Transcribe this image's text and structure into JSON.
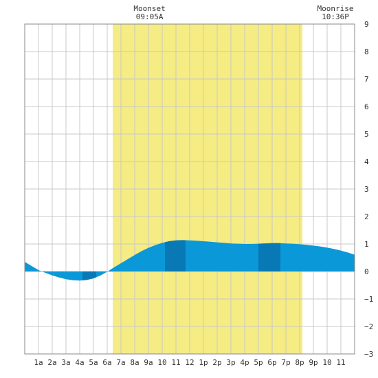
{
  "chart_data": {
    "type": "area",
    "title": "",
    "xlabel": "",
    "ylabel": "",
    "x_unit": "hour of day",
    "xlim": [
      0,
      24
    ],
    "ylim": [
      -3,
      9
    ],
    "y_ticks": [
      -3,
      -2,
      -1,
      0,
      1,
      2,
      3,
      4,
      5,
      6,
      7,
      8,
      9
    ],
    "x_ticks": [
      {
        "hour": 1,
        "label": "1a"
      },
      {
        "hour": 2,
        "label": "2a"
      },
      {
        "hour": 3,
        "label": "3a"
      },
      {
        "hour": 4,
        "label": "4a"
      },
      {
        "hour": 5,
        "label": "5a"
      },
      {
        "hour": 6,
        "label": "6a"
      },
      {
        "hour": 7,
        "label": "7a"
      },
      {
        "hour": 8,
        "label": "8a"
      },
      {
        "hour": 9,
        "label": "9a"
      },
      {
        "hour": 10,
        "label": "10"
      },
      {
        "hour": 11,
        "label": "11"
      },
      {
        "hour": 12,
        "label": "12"
      },
      {
        "hour": 13,
        "label": "1p"
      },
      {
        "hour": 14,
        "label": "2p"
      },
      {
        "hour": 15,
        "label": "3p"
      },
      {
        "hour": 16,
        "label": "4p"
      },
      {
        "hour": 17,
        "label": "5p"
      },
      {
        "hour": 18,
        "label": "6p"
      },
      {
        "hour": 19,
        "label": "7p"
      },
      {
        "hour": 20,
        "label": "8p"
      },
      {
        "hour": 21,
        "label": "9p"
      },
      {
        "hour": 22,
        "label": "10"
      },
      {
        "hour": 23,
        "label": "11"
      }
    ],
    "daylight": {
      "start_hour": 6.4,
      "end_hour": 20.2
    },
    "highlight_bands": [
      {
        "start_hour": 4.2,
        "end_hour": 5.2
      },
      {
        "start_hour": 10.2,
        "end_hour": 11.7
      },
      {
        "start_hour": 17.0,
        "end_hour": 18.6
      }
    ],
    "series": [
      {
        "x": [
          0,
          0.5,
          1,
          1.5,
          2,
          2.5,
          3,
          3.5,
          4,
          4.5,
          5,
          5.5,
          6,
          6.5,
          7,
          7.5,
          8,
          8.5,
          9,
          9.5,
          10,
          10.5,
          11,
          11.5,
          12,
          12.5,
          13,
          13.5,
          14,
          14.5,
          15,
          15.5,
          16,
          16.5,
          17,
          17.5,
          18,
          18.5,
          19,
          19.5,
          20,
          20.5,
          21,
          21.5,
          22,
          22.5,
          23,
          23.5,
          24
        ],
        "y": [
          0.35,
          0.2,
          0.05,
          -0.05,
          -0.14,
          -0.22,
          -0.28,
          -0.32,
          -0.33,
          -0.31,
          -0.25,
          -0.15,
          -0.01,
          0.15,
          0.3,
          0.45,
          0.6,
          0.74,
          0.86,
          0.96,
          1.04,
          1.1,
          1.13,
          1.14,
          1.13,
          1.12,
          1.1,
          1.08,
          1.06,
          1.04,
          1.02,
          1.01,
          1.0,
          1.0,
          1.01,
          1.02,
          1.03,
          1.03,
          1.02,
          1.01,
          0.99,
          0.97,
          0.94,
          0.91,
          0.87,
          0.82,
          0.76,
          0.69,
          0.61
        ]
      }
    ],
    "moon_events": [
      {
        "label": "Moonset",
        "time": "09:05A",
        "hour": 9.08
      },
      {
        "label": "Moonrise",
        "time": "10:36P",
        "hour": 22.6
      }
    ],
    "grid": true,
    "colors": {
      "daylight": "#f5ec84",
      "tide": "#0a98d8",
      "tide_band": "#0879b5",
      "grid": "#c8c8c8",
      "frame": "#888888"
    }
  }
}
